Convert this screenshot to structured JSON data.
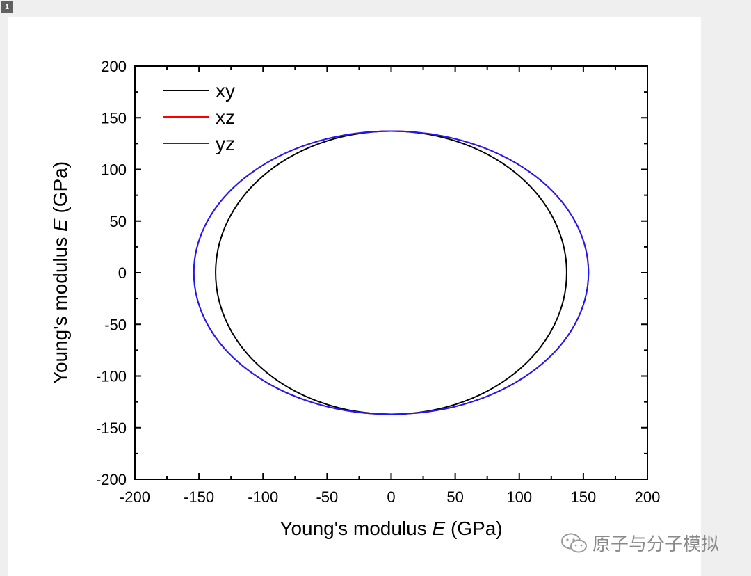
{
  "page_badge": "1",
  "watermark": {
    "text": "原子与分子模拟",
    "icon": "wechat-icon"
  },
  "chart_data": {
    "type": "line",
    "subtype": "polar-curve",
    "title": "",
    "xlabel_prefix": "Young's modulus ",
    "xlabel_symbol": "E",
    "xlabel_suffix": " (GPa)",
    "ylabel_prefix": "Young's modulus ",
    "ylabel_symbol": "E",
    "ylabel_suffix": " (GPa)",
    "xlim": [
      -200,
      200
    ],
    "ylim": [
      -200,
      200
    ],
    "xticks": [
      -200,
      -150,
      -100,
      -50,
      0,
      50,
      100,
      150,
      200
    ],
    "yticks": [
      -200,
      -150,
      -100,
      -50,
      0,
      50,
      100,
      150,
      200
    ],
    "grid": false,
    "legend_position": "top-left",
    "series": [
      {
        "name": "xy",
        "color": "#000000",
        "rx": 137,
        "ry": 137,
        "shape": "ellipse"
      },
      {
        "name": "xz",
        "color": "#ff0000",
        "rx": 154,
        "ry": 137,
        "shape": "ellipse"
      },
      {
        "name": "yz",
        "color": "#1a1aff",
        "rx": 154,
        "ry": 137,
        "shape": "ellipse"
      }
    ]
  }
}
